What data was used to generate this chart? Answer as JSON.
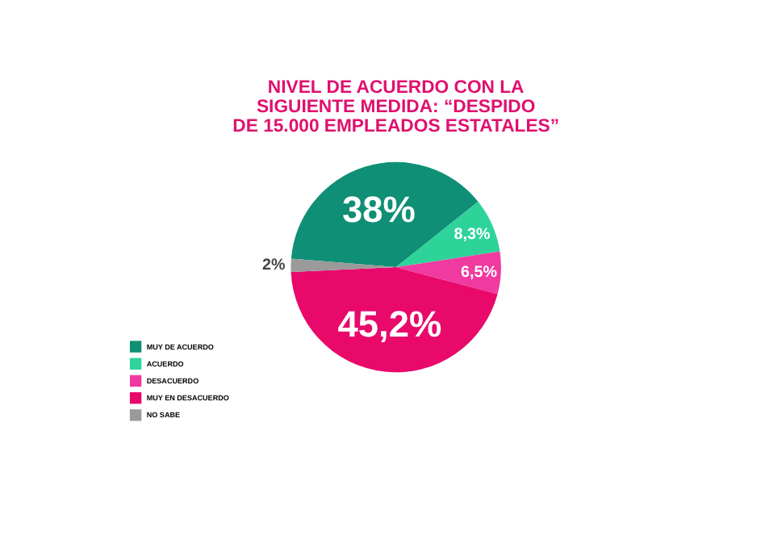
{
  "chart_data": {
    "type": "pie",
    "title": "NIVEL DE ACUERDO CON LA SIGUIENTE MEDIDA: “DESPIDO DE 15.000 EMPLEADOS ESTATALES”",
    "categories": [
      "MUY DE ACUERDO",
      "ACUERDO",
      "DESACUERDO",
      "MUY EN DESACUERDO",
      "NO SABE"
    ],
    "values": [
      38,
      8.3,
      6.5,
      45.2,
      2
    ],
    "value_labels": [
      "38%",
      "8,3%",
      "6,5%",
      "45,2%",
      "2%"
    ],
    "colors": [
      "#0f8f75",
      "#2ed39a",
      "#f03aa0",
      "#e8096b",
      "#9a9a9a"
    ],
    "legend": "bottom left"
  }
}
